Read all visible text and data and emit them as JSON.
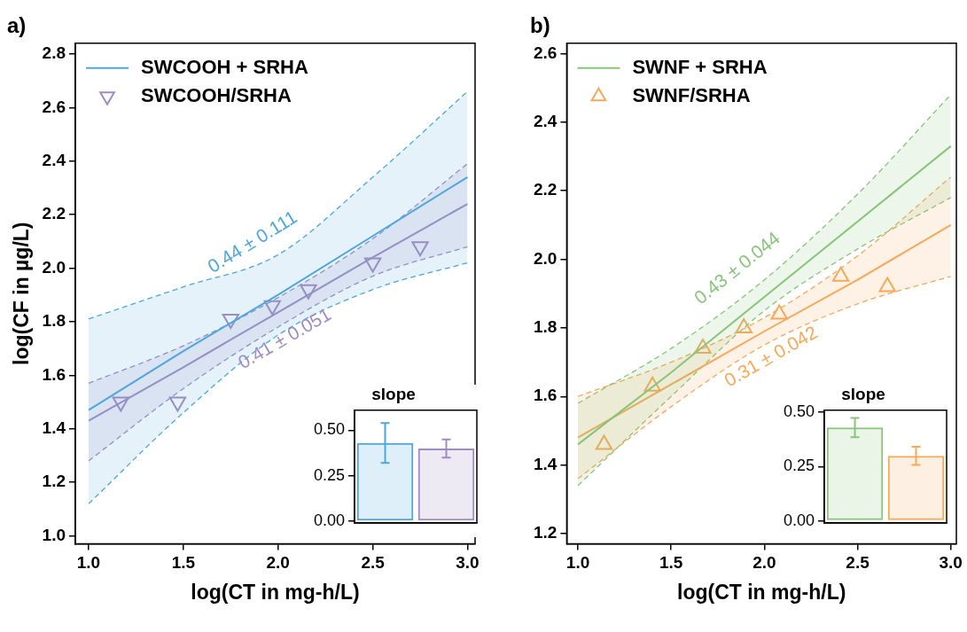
{
  "chart_data": [
    {
      "type": "line",
      "title": "a)",
      "xlabel": "log(CT in mg-h/L)",
      "ylabel": "log(CF in µg/L)",
      "xlim": [
        0.93,
        3.04
      ],
      "ylim": [
        0.97,
        2.84
      ],
      "xticks": [
        {
          "value": 1,
          "label": "1.0"
        },
        {
          "value": 1.5,
          "label": "1.5"
        },
        {
          "value": 2,
          "label": "2.0"
        },
        {
          "value": 2.5,
          "label": "2.5"
        },
        {
          "value": 3,
          "label": "3.0"
        }
      ],
      "yticks": [
        {
          "value": 1,
          "label": "1.0"
        },
        {
          "value": 1.2,
          "label": "1.2"
        },
        {
          "value": 1.4,
          "label": "1.4"
        },
        {
          "value": 1.6,
          "label": "1.6"
        },
        {
          "value": 1.8,
          "label": "1.8"
        },
        {
          "value": 2,
          "label": "2.0"
        },
        {
          "value": 2.2,
          "label": "2.2"
        },
        {
          "value": 2.4,
          "label": "2.4"
        },
        {
          "value": 2.6,
          "label": "2.6"
        },
        {
          "value": 2.8,
          "label": "2.8"
        }
      ],
      "legend": "top left",
      "grid": false,
      "series": [
        {
          "name": "SWCOOH + SRHA",
          "type": "line",
          "marker": "none",
          "color": "#4ea6dc",
          "x": [
            1,
            1.5,
            2,
            2.5,
            3
          ],
          "values": [
            1.47,
            1.69,
            1.9,
            2.12,
            2.34
          ],
          "lower": [
            1.12,
            1.46,
            1.75,
            1.92,
            2.02
          ],
          "upper": [
            1.81,
            1.93,
            2.05,
            2.34,
            2.66
          ]
        },
        {
          "type": "line",
          "marker": "none",
          "color": "#a08cc0",
          "x": [
            1,
            1.5,
            2,
            2.5,
            3
          ],
          "values": [
            1.43,
            1.63,
            1.835,
            2.04,
            2.24
          ],
          "lower": [
            1.28,
            1.55,
            1.78,
            1.97,
            2.08
          ],
          "upper": [
            1.57,
            1.71,
            1.89,
            2.11,
            2.39
          ]
        },
        {
          "type": "line",
          "marker": "none",
          "line_style": "dashed",
          "color": "#4ea6dc",
          "x": [
            1,
            1.5,
            2,
            2.5,
            3
          ],
          "values": [
            1.12,
            1.46,
            1.75,
            1.92,
            2.02
          ]
        },
        {
          "type": "line",
          "marker": "none",
          "line_style": "dashed",
          "color": "#4ea6dc",
          "x": [
            1,
            1.5,
            2,
            2.5,
            3
          ],
          "values": [
            1.81,
            1.93,
            2.05,
            2.34,
            2.66
          ]
        },
        {
          "type": "line",
          "marker": "none",
          "line_style": "dashed",
          "color": "#a08cc0",
          "x": [
            1,
            1.5,
            2,
            2.5,
            3
          ],
          "values": [
            1.28,
            1.55,
            1.78,
            1.97,
            2.08
          ]
        },
        {
          "type": "line",
          "marker": "none",
          "line_style": "dashed",
          "color": "#a08cc0",
          "x": [
            1,
            1.5,
            2,
            2.5,
            3
          ],
          "values": [
            1.57,
            1.71,
            1.89,
            2.11,
            2.39
          ]
        },
        {
          "name": "SWCOOH/SRHA",
          "type": "scatter",
          "marker": "triangle_down",
          "color": "#a08cc0",
          "x": [
            1.17,
            1.47,
            1.75,
            1.97,
            2.16,
            2.5,
            2.75
          ],
          "values": [
            1.5,
            1.5,
            1.81,
            1.86,
            1.92,
            2.02,
            2.08
          ]
        }
      ],
      "annotations": [
        "0.44 ± 0.111",
        "0.41 ± 0.051"
      ]
    },
    {
      "type": "bar",
      "title": "slope",
      "categories": [
        null,
        null
      ],
      "values": [
        0.43,
        0.4
      ],
      "colors": [
        "#4ea6dc",
        "#a08cc0"
      ],
      "errors": [
        0.11,
        0.05
      ],
      "ylim": [
        -0.01,
        0.61
      ],
      "yticks": [
        {
          "value": 0,
          "label": "0.00"
        },
        {
          "value": 0.25,
          "label": "0.25"
        },
        {
          "value": 0.5,
          "label": "0.50"
        }
      ],
      "tick_labels": "y"
    },
    {
      "type": "line",
      "title": "b)",
      "xlabel": "log(CT in mg-h/L)",
      "xlim": [
        0.94,
        3.03
      ],
      "ylim": [
        1.17,
        2.63
      ],
      "xticks": [
        {
          "value": 1,
          "label": "1.0"
        },
        {
          "value": 1.5,
          "label": "1.5"
        },
        {
          "value": 2,
          "label": "2.0"
        },
        {
          "value": 2.5,
          "label": "2.5"
        },
        {
          "value": 3,
          "label": "3.0"
        }
      ],
      "yticks": [
        {
          "value": 1.2,
          "label": "1.2"
        },
        {
          "value": 1.4,
          "label": "1.4"
        },
        {
          "value": 1.6,
          "label": "1.6"
        },
        {
          "value": 1.8,
          "label": "1.8"
        },
        {
          "value": 2,
          "label": "2.0"
        },
        {
          "value": 2.2,
          "label": "2.2"
        },
        {
          "value": 2.4,
          "label": "2.4"
        },
        {
          "value": 2.6,
          "label": "2.6"
        }
      ],
      "legend": "top left",
      "grid": false,
      "series": [
        {
          "name": "SWNF + SRHA",
          "type": "line",
          "marker": "none",
          "color": "#88c47a",
          "x": [
            1,
            1.5,
            2,
            2.5,
            3
          ],
          "values": [
            1.46,
            1.67,
            1.89,
            2.11,
            2.33
          ],
          "lower": [
            1.34,
            1.6,
            1.85,
            2.03,
            2.18
          ],
          "upper": [
            1.58,
            1.74,
            1.94,
            2.19,
            2.48
          ]
        },
        {
          "type": "line",
          "marker": "none",
          "color": "#f5a95a",
          "x": [
            1,
            1.5,
            2,
            2.5,
            3
          ],
          "values": [
            1.48,
            1.635,
            1.79,
            1.94,
            2.1
          ],
          "lower": [
            1.36,
            1.57,
            1.75,
            1.87,
            1.95
          ],
          "upper": [
            1.6,
            1.7,
            1.83,
            2.01,
            2.24
          ]
        },
        {
          "type": "line",
          "marker": "none",
          "line_style": "dashed",
          "color": "#88c47a",
          "x": [
            1,
            1.5,
            2,
            2.5,
            3
          ],
          "values": [
            1.34,
            1.6,
            1.85,
            2.03,
            2.18
          ]
        },
        {
          "type": "line",
          "marker": "none",
          "line_style": "dashed",
          "color": "#88c47a",
          "x": [
            1,
            1.5,
            2,
            2.5,
            3
          ],
          "values": [
            1.58,
            1.74,
            1.94,
            2.19,
            2.48
          ]
        },
        {
          "type": "line",
          "marker": "none",
          "line_style": "dashed",
          "color": "#f5a95a",
          "x": [
            1,
            1.5,
            2,
            2.5,
            3
          ],
          "values": [
            1.36,
            1.57,
            1.75,
            1.87,
            1.95
          ]
        },
        {
          "type": "line",
          "marker": "none",
          "line_style": "dashed",
          "color": "#f5a95a",
          "x": [
            1,
            1.5,
            2,
            2.5,
            3
          ],
          "values": [
            1.6,
            1.7,
            1.83,
            2.01,
            2.24
          ]
        },
        {
          "name": "SWNF/SRHA",
          "type": "scatter",
          "marker": "triangle",
          "color": "#f5a95a",
          "x": [
            1.14,
            1.4,
            1.67,
            1.89,
            2.08,
            2.41,
            2.66
          ],
          "values": [
            1.46,
            1.63,
            1.74,
            1.8,
            1.84,
            1.95,
            1.92
          ]
        }
      ],
      "annotations": [
        "0.43 ± 0.044",
        "0.31 ± 0.042"
      ]
    },
    {
      "type": "bar",
      "title": "slope",
      "categories": [
        null,
        null
      ],
      "values": [
        0.43,
        0.3
      ],
      "colors": [
        "#88c47a",
        "#f5a95a"
      ],
      "errors": [
        0.044,
        0.042
      ],
      "ylim": [
        -0.01,
        0.51
      ],
      "yticks": [
        {
          "value": 0,
          "label": "0.00"
        },
        {
          "value": 0.25,
          "label": "0.25"
        },
        {
          "value": 0.5,
          "label": "0.50"
        }
      ],
      "tick_labels": "y"
    }
  ]
}
